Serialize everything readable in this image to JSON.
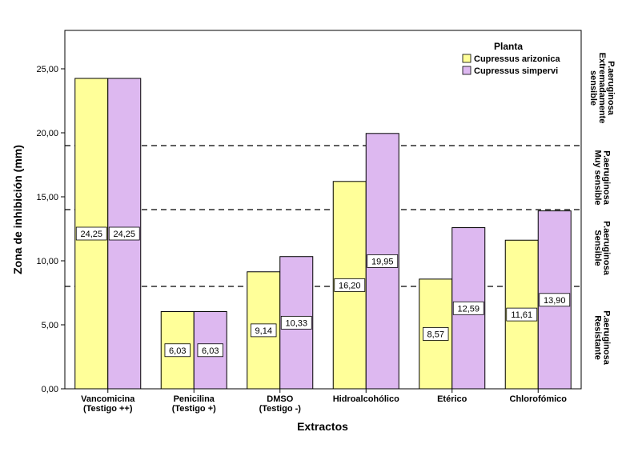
{
  "chart_data": {
    "type": "bar",
    "xlabel": "Extractos",
    "ylabel": "Zona de inhibición (mm)",
    "ylim": [
      0,
      28
    ],
    "y_ticks": [
      "0,00",
      "5,00",
      "10,00",
      "15,00",
      "20,00",
      "25,00"
    ],
    "y_tick_values": [
      0,
      5,
      10,
      15,
      20,
      25
    ],
    "categories": [
      [
        "Vancomicina",
        "(Testigo ++)"
      ],
      [
        "Penicilina",
        "(Testigo +)"
      ],
      [
        "DMSO",
        "(Testigo -)"
      ],
      [
        "Hidroalcohólico"
      ],
      [
        "Etérico"
      ],
      [
        "Chlorofómico"
      ]
    ],
    "series": [
      {
        "name": "Cupressus arizonica",
        "color": "#ffff99",
        "values": [
          24.25,
          6.03,
          9.14,
          16.2,
          8.57,
          11.61
        ],
        "labels": [
          "24,25",
          "6,03",
          "9,14",
          "16,20",
          "8,57",
          "11,61"
        ]
      },
      {
        "name": "Cupressus simpervi",
        "color": "#ddb8f0",
        "values": [
          24.25,
          6.03,
          10.33,
          19.95,
          12.59,
          13.9
        ],
        "labels": [
          "24,25",
          "6,03",
          "10,33",
          "19,95",
          "12,59",
          "13,90"
        ]
      }
    ],
    "legend": {
      "title": "Planta",
      "placement": "top-right"
    },
    "reference_lines": [
      8,
      14,
      19
    ],
    "zones": [
      {
        "lines": [
          "P.aeruginosa",
          "Extremadamente",
          "sensible"
        ],
        "y_min": 19,
        "y_max": 28
      },
      {
        "lines": [
          "P.aeruginosa",
          "Muy sensible"
        ],
        "y_min": 14,
        "y_max": 19
      },
      {
        "lines": [
          "P.aeruginosa",
          "Sensible"
        ],
        "y_min": 8,
        "y_max": 14
      },
      {
        "lines": [
          "P.aeruginosa",
          "Resistante"
        ],
        "y_min": 0,
        "y_max": 8
      }
    ],
    "grid": false
  }
}
